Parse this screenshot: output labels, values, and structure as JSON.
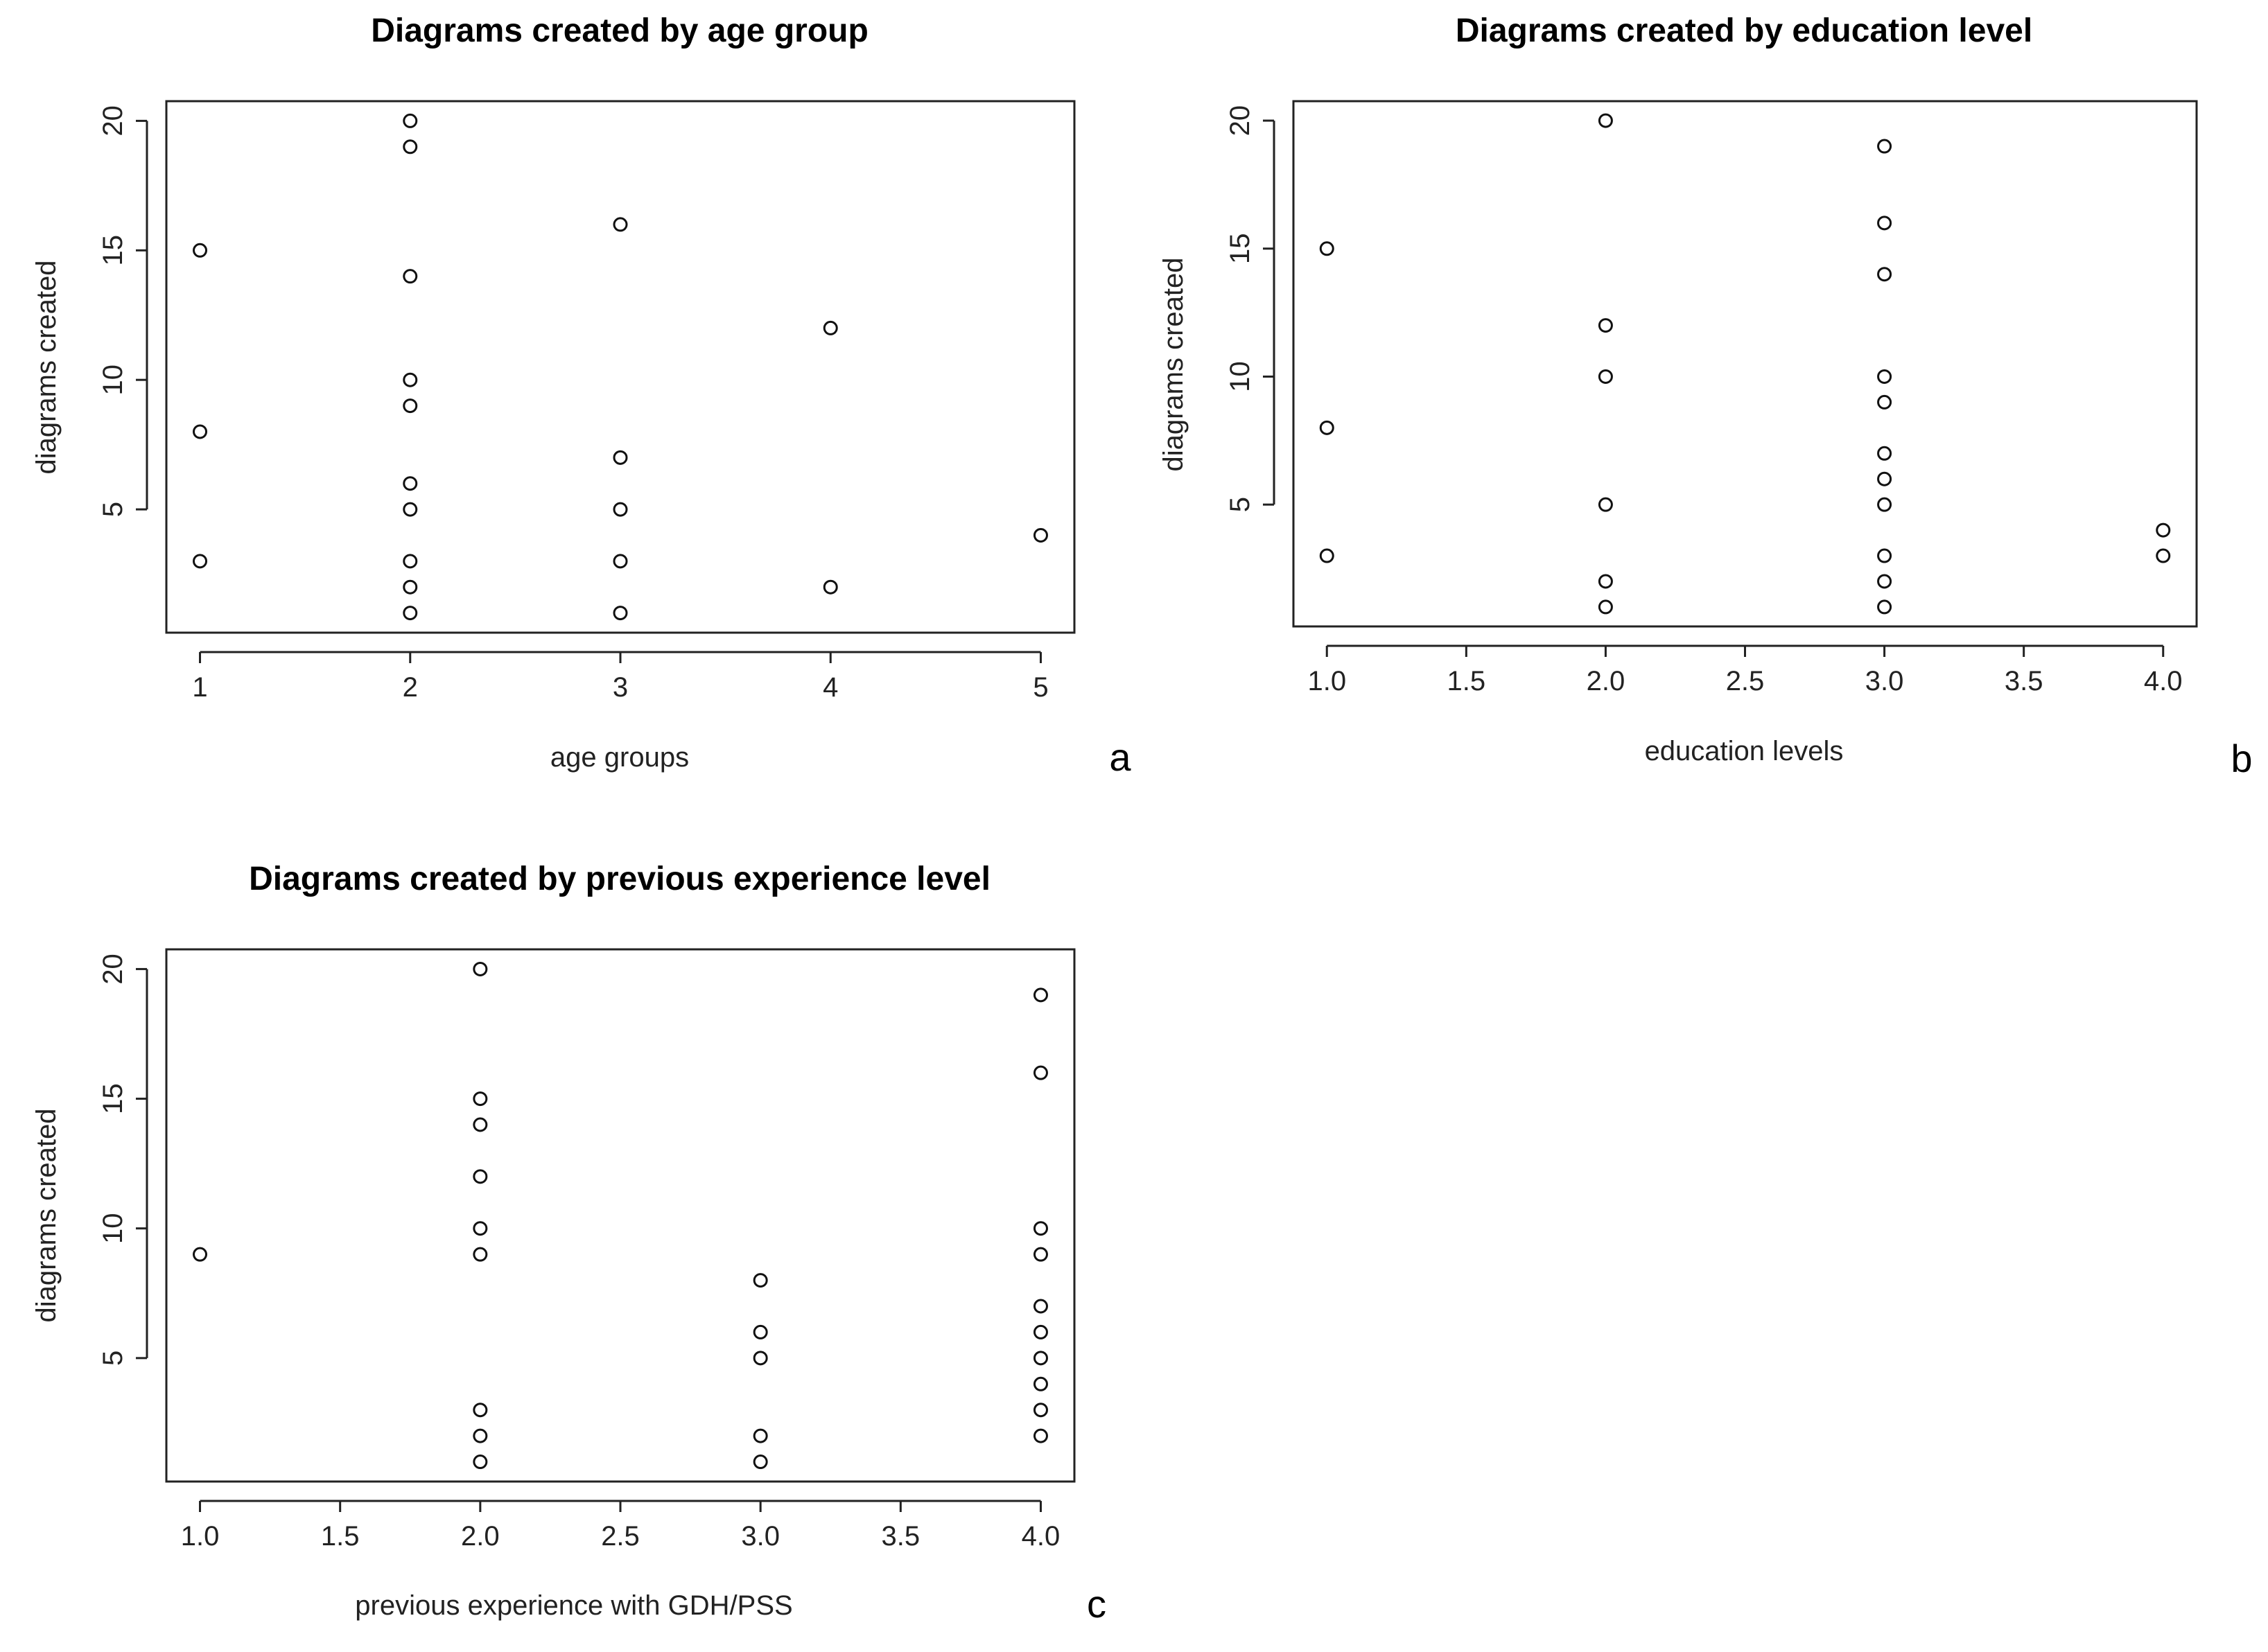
{
  "chart_data": [
    {
      "id": "a",
      "type": "scatter",
      "title": "Diagrams created by age group",
      "xlabel": "age groups",
      "ylabel": "diagrams created",
      "panel_letter": "a",
      "xlim": [
        0.84,
        5.16
      ],
      "ylim": [
        0.24,
        20.76
      ],
      "x_ticks": [
        1,
        2,
        3,
        4,
        5
      ],
      "x_tick_labels": [
        "1",
        "2",
        "3",
        "4",
        "5"
      ],
      "y_ticks": [
        5,
        10,
        15,
        20
      ],
      "y_tick_labels": [
        "5",
        "10",
        "15",
        "20"
      ],
      "points": [
        {
          "x": 1,
          "y": 3
        },
        {
          "x": 1,
          "y": 8
        },
        {
          "x": 1,
          "y": 15
        },
        {
          "x": 2,
          "y": 1
        },
        {
          "x": 2,
          "y": 2
        },
        {
          "x": 2,
          "y": 3
        },
        {
          "x": 2,
          "y": 5
        },
        {
          "x": 2,
          "y": 6
        },
        {
          "x": 2,
          "y": 9
        },
        {
          "x": 2,
          "y": 10
        },
        {
          "x": 2,
          "y": 14
        },
        {
          "x": 2,
          "y": 19
        },
        {
          "x": 2,
          "y": 20
        },
        {
          "x": 3,
          "y": 1
        },
        {
          "x": 3,
          "y": 3
        },
        {
          "x": 3,
          "y": 5
        },
        {
          "x": 3,
          "y": 7
        },
        {
          "x": 3,
          "y": 16
        },
        {
          "x": 4,
          "y": 2
        },
        {
          "x": 4,
          "y": 12
        },
        {
          "x": 5,
          "y": 4
        }
      ]
    },
    {
      "id": "b",
      "type": "scatter",
      "title": "Diagrams created by education level",
      "xlabel": "education levels",
      "ylabel": "diagrams created",
      "panel_letter": "b",
      "xlim": [
        0.88,
        4.12
      ],
      "ylim": [
        0.24,
        20.76
      ],
      "x_ticks": [
        1.0,
        1.5,
        2.0,
        2.5,
        3.0,
        3.5,
        4.0
      ],
      "x_tick_labels": [
        "1.0",
        "1.5",
        "2.0",
        "2.5",
        "3.0",
        "3.5",
        "4.0"
      ],
      "y_ticks": [
        5,
        10,
        15,
        20
      ],
      "y_tick_labels": [
        "5",
        "10",
        "15",
        "20"
      ],
      "points": [
        {
          "x": 1,
          "y": 3
        },
        {
          "x": 1,
          "y": 8
        },
        {
          "x": 1,
          "y": 15
        },
        {
          "x": 2,
          "y": 1
        },
        {
          "x": 2,
          "y": 2
        },
        {
          "x": 2,
          "y": 5
        },
        {
          "x": 2,
          "y": 10
        },
        {
          "x": 2,
          "y": 12
        },
        {
          "x": 2,
          "y": 20
        },
        {
          "x": 3,
          "y": 1
        },
        {
          "x": 3,
          "y": 2
        },
        {
          "x": 3,
          "y": 3
        },
        {
          "x": 3,
          "y": 5
        },
        {
          "x": 3,
          "y": 6
        },
        {
          "x": 3,
          "y": 7
        },
        {
          "x": 3,
          "y": 9
        },
        {
          "x": 3,
          "y": 10
        },
        {
          "x": 3,
          "y": 14
        },
        {
          "x": 3,
          "y": 16
        },
        {
          "x": 3,
          "y": 19
        },
        {
          "x": 4,
          "y": 3
        },
        {
          "x": 4,
          "y": 4
        }
      ]
    },
    {
      "id": "c",
      "type": "scatter",
      "title": "Diagrams created by previous experience level",
      "xlabel": "previous experience with GDH/PSS",
      "ylabel": "diagrams created",
      "panel_letter": "c",
      "xlim": [
        0.88,
        4.12
      ],
      "ylim": [
        0.24,
        20.76
      ],
      "x_ticks": [
        1.0,
        1.5,
        2.0,
        2.5,
        3.0,
        3.5,
        4.0
      ],
      "x_tick_labels": [
        "1.0",
        "1.5",
        "2.0",
        "2.5",
        "3.0",
        "3.5",
        "4.0"
      ],
      "y_ticks": [
        5,
        10,
        15,
        20
      ],
      "y_tick_labels": [
        "5",
        "10",
        "15",
        "20"
      ],
      "points": [
        {
          "x": 1,
          "y": 9
        },
        {
          "x": 2,
          "y": 1
        },
        {
          "x": 2,
          "y": 2
        },
        {
          "x": 2,
          "y": 3
        },
        {
          "x": 2,
          "y": 9
        },
        {
          "x": 2,
          "y": 10
        },
        {
          "x": 2,
          "y": 12
        },
        {
          "x": 2,
          "y": 14
        },
        {
          "x": 2,
          "y": 15
        },
        {
          "x": 2,
          "y": 20
        },
        {
          "x": 3,
          "y": 1
        },
        {
          "x": 3,
          "y": 2
        },
        {
          "x": 3,
          "y": 5
        },
        {
          "x": 3,
          "y": 6
        },
        {
          "x": 3,
          "y": 8
        },
        {
          "x": 4,
          "y": 2
        },
        {
          "x": 4,
          "y": 3
        },
        {
          "x": 4,
          "y": 4
        },
        {
          "x": 4,
          "y": 5
        },
        {
          "x": 4,
          "y": 6
        },
        {
          "x": 4,
          "y": 7
        },
        {
          "x": 4,
          "y": 9
        },
        {
          "x": 4,
          "y": 10
        },
        {
          "x": 4,
          "y": 16
        },
        {
          "x": 4,
          "y": 19
        }
      ]
    }
  ]
}
